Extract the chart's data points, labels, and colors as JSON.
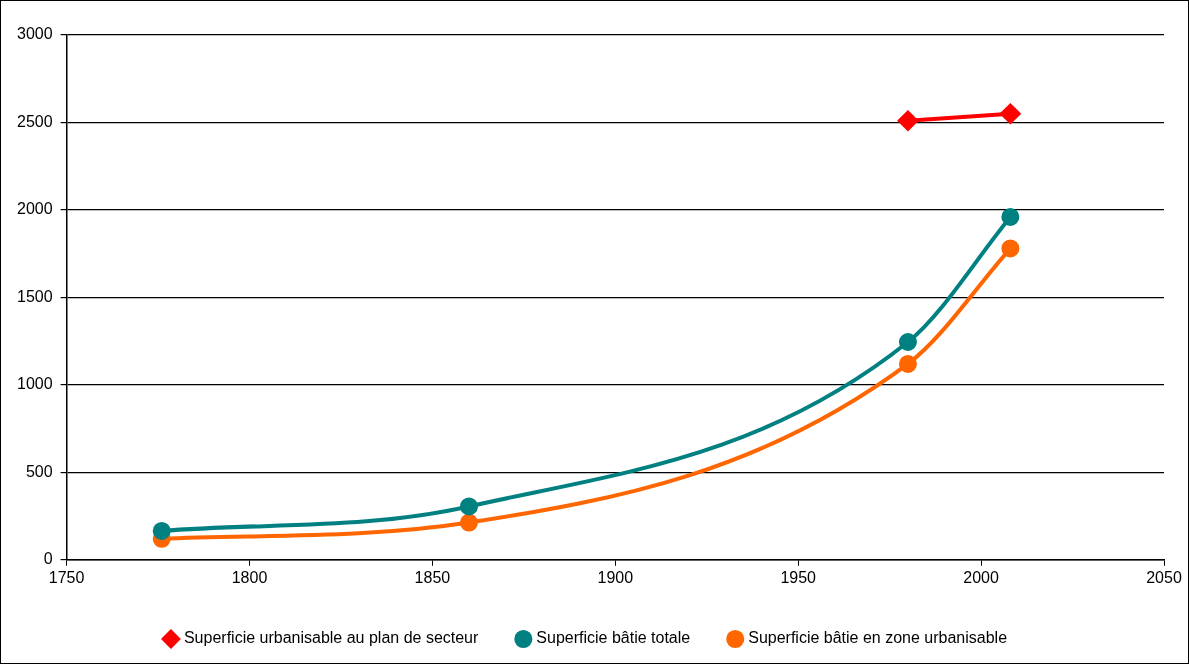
{
  "chart_data": {
    "type": "line",
    "xlim": [
      1750,
      2050
    ],
    "xticks": [
      1750,
      1800,
      1850,
      1900,
      1950,
      2000,
      2050
    ],
    "ylim": [
      0,
      3000
    ],
    "yticks": [
      0,
      500,
      1000,
      1500,
      2000,
      2500,
      3000
    ],
    "grid": "y",
    "legend": "bottom",
    "line_style": "solid",
    "series": [
      {
        "name": "Superficie urbanisable au plan de secteur",
        "color": "#ff0000",
        "marker": "diamond",
        "x": [
          1980,
          2008
        ],
        "values": [
          2510,
          2550
        ]
      },
      {
        "name": "Superficie bâtie totale",
        "color": "#008080",
        "marker": "circle",
        "x": [
          1776,
          1860,
          1980,
          2008
        ],
        "values": [
          165,
          305,
          1245,
          1960
        ]
      },
      {
        "name": "Superficie bâtie en zone urbanisable",
        "color": "#ff6600",
        "marker": "circle",
        "x": [
          1776,
          1860,
          1980,
          2008
        ],
        "values": [
          120,
          213,
          1120,
          1780
        ]
      }
    ]
  }
}
